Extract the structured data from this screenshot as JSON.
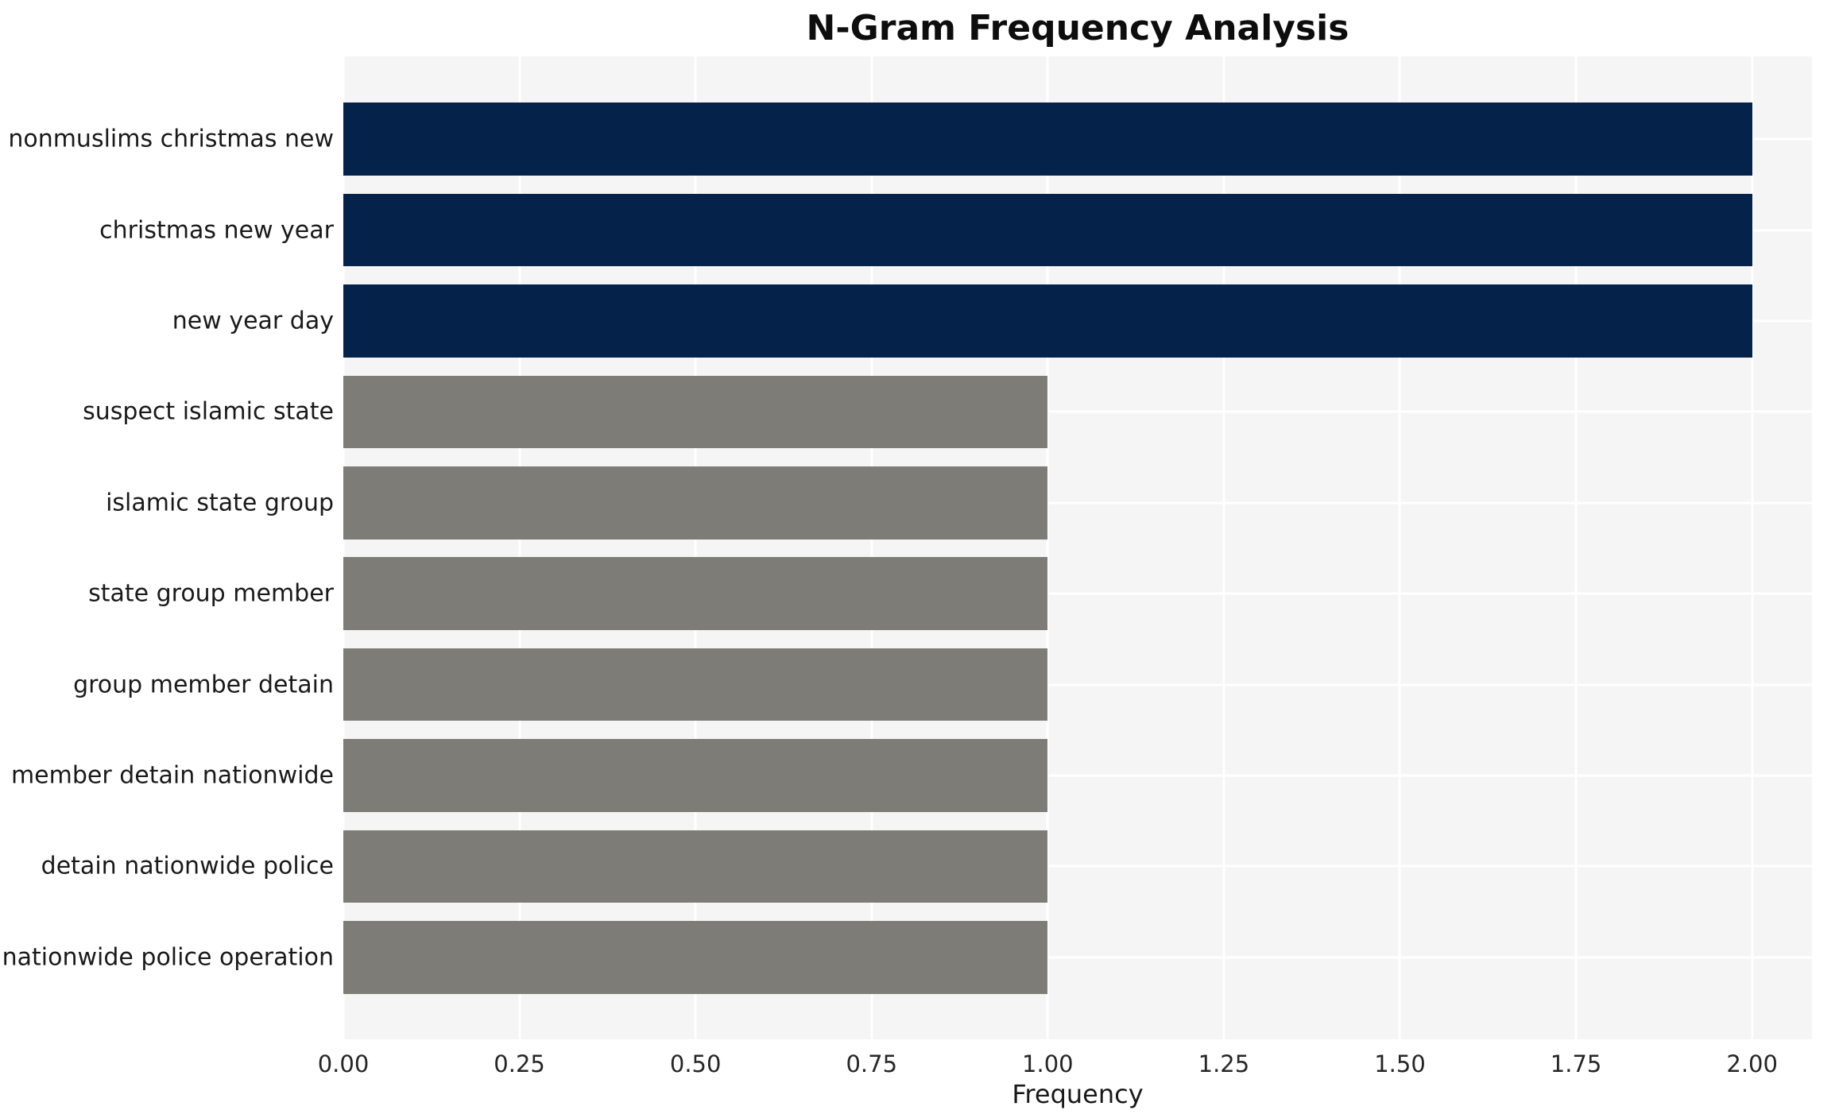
{
  "chart_data": {
    "type": "bar",
    "orientation": "horizontal",
    "title": "N-Gram Frequency Analysis",
    "xlabel": "Frequency",
    "ylabel": "",
    "categories": [
      "nonmuslims christmas new",
      "christmas new year",
      "new year day",
      "suspect islamic state",
      "islamic state group",
      "state group member",
      "group member detain",
      "member detain nationwide",
      "detain nationwide police",
      "nationwide police operation"
    ],
    "values": [
      2,
      2,
      2,
      1,
      1,
      1,
      1,
      1,
      1,
      1
    ],
    "bar_colors": [
      "#05224a",
      "#05224a",
      "#05224a",
      "#7e7c77",
      "#7e7c77",
      "#7e7c77",
      "#7e7c77",
      "#7e7c77",
      "#7e7c77",
      "#7e7c77"
    ],
    "xlim": [
      0,
      2.085
    ],
    "xticks": {
      "labels": [
        "0.00",
        "0.25",
        "0.50",
        "0.75",
        "1.00",
        "1.25",
        "1.50",
        "1.75",
        "2.00"
      ],
      "values": [
        0,
        0.25,
        0.5,
        0.75,
        1.0,
        1.25,
        1.5,
        1.75,
        2.0
      ]
    },
    "grid": true,
    "legend": false,
    "plot_bg": "#f5f5f5",
    "grid_color": "#ffffff"
  }
}
